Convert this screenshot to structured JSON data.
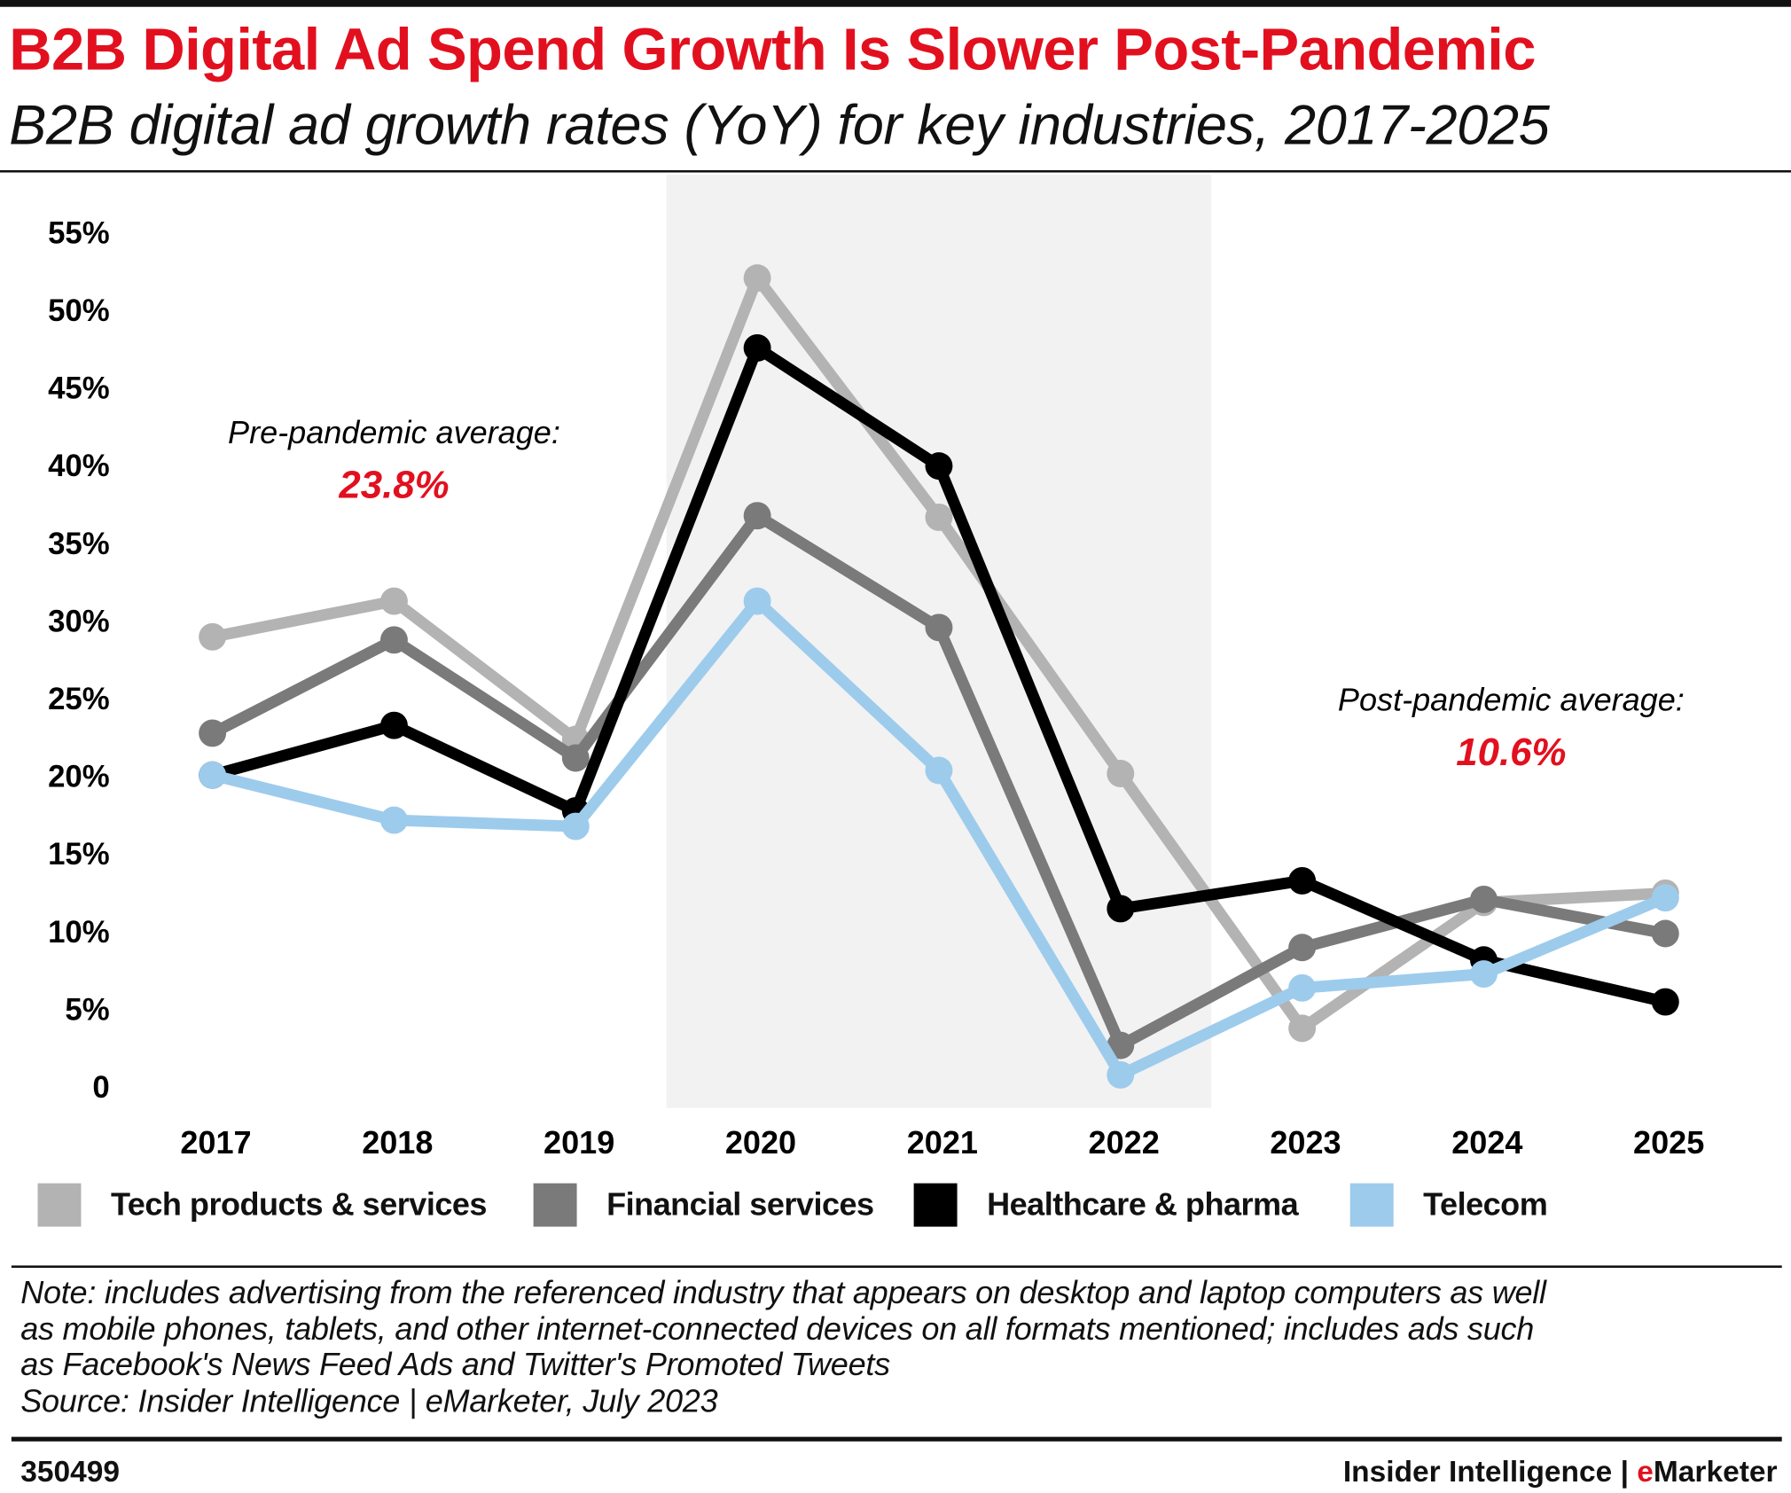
{
  "title": "B2B Digital Ad Spend Growth Is Slower Post-Pandemic",
  "subtitle": "B2B digital ad growth rates (YoY) for key industries, 2017-2025",
  "chart_data": {
    "type": "line",
    "x": [
      "2017",
      "2018",
      "2019",
      "2020",
      "2021",
      "2022",
      "2023",
      "2024",
      "2025"
    ],
    "ylim": [
      0,
      55
    ],
    "yticks": [
      "0",
      "5%",
      "10%",
      "15%",
      "20%",
      "25%",
      "30%",
      "35%",
      "40%",
      "45%",
      "50%",
      "55%"
    ],
    "grid": false,
    "legend_placement": "bottom",
    "shaded_region": [
      "2020",
      "2022"
    ],
    "series": [
      {
        "name": "Tech products & services",
        "color": "#b3b3b3",
        "values": [
          29.0,
          31.3,
          22.4,
          52.1,
          36.7,
          20.2,
          3.8,
          11.9,
          12.5
        ]
      },
      {
        "name": "Financial services",
        "color": "#7a7a7a",
        "values": [
          22.8,
          28.8,
          21.2,
          36.8,
          29.6,
          2.7,
          9.0,
          12.1,
          9.9
        ]
      },
      {
        "name": "Healthcare & pharma",
        "color": "#000000",
        "values": [
          20.1,
          23.3,
          17.8,
          47.6,
          40.0,
          11.5,
          13.3,
          8.2,
          5.5
        ]
      },
      {
        "name": "Telecom",
        "color": "#9dcbec",
        "values": [
          20.1,
          17.2,
          16.8,
          31.3,
          20.4,
          0.8,
          6.4,
          7.3,
          12.2
        ]
      }
    ],
    "annotations": [
      {
        "label": "Pre-pandemic average:",
        "value": "23.8%"
      },
      {
        "label": "Post-pandemic average:",
        "value": "10.6%"
      }
    ]
  },
  "notes": [
    "Note: includes advertising from the referenced industry that appears on desktop and laptop computers as well",
    "as mobile phones, tablets, and other internet-connected devices on all formats mentioned; includes ads such",
    "as Facebook's News Feed Ads and Twitter's Promoted Tweets",
    "Source: Insider Intelligence | eMarketer, July 2023"
  ],
  "footer": {
    "id": "350499",
    "brand_prefix": "Insider Intelligence | ",
    "brand_accent": "e",
    "brand_suffix": "Marketer"
  },
  "colors": {
    "accent": "#e2101f",
    "shade": "#f2f2f2"
  }
}
